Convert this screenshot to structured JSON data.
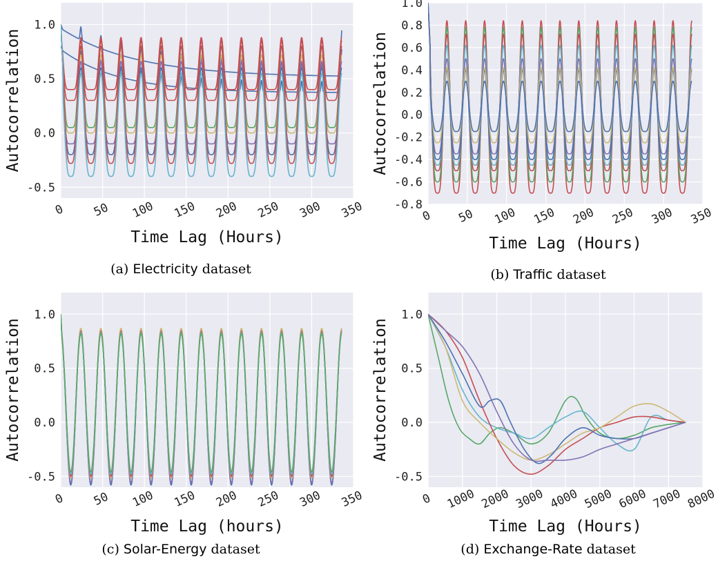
{
  "palette": [
    "#4c72b0",
    "#55a868",
    "#c44e52",
    "#8172b2",
    "#ccb974",
    "#64b5cd"
  ],
  "chart_data": [
    {
      "type": "line",
      "caption": {
        "prefix": "(a) ",
        "name": "Electricity",
        "suffix": " dataset"
      },
      "xlabel": "Time Lag (Hours)",
      "ylabel": "Autocorrelation",
      "xlim": [
        0,
        350
      ],
      "ylim": [
        -0.6,
        1.2
      ],
      "xticks": [
        "0",
        "50",
        "100",
        "150",
        "200",
        "250",
        "300",
        "350"
      ],
      "yticks": [
        "-0.5",
        "0.0",
        "0.5",
        "1.0"
      ],
      "grid": true,
      "legend": "none",
      "period_hours": 24,
      "x_max_data": 336,
      "series": [
        {
          "kind": "decay",
          "color": "#4c72b0",
          "start": 1.0,
          "floor": 0.55,
          "tau": 90,
          "amp": 0.06
        },
        {
          "kind": "decay",
          "color": "#4c72b0",
          "start": 0.8,
          "floor": 0.4,
          "tau": 70,
          "amp": 0.05
        },
        {
          "kind": "periodic",
          "color": "#c44e52",
          "peak": 0.88,
          "trough": 0.4,
          "sharp": 4
        },
        {
          "kind": "periodic",
          "color": "#c44e52",
          "peak": 0.85,
          "trough": 0.3,
          "sharp": 4
        },
        {
          "kind": "periodic",
          "color": "#55a868",
          "peak": 0.8,
          "trough": 0.05,
          "sharp": 3
        },
        {
          "kind": "periodic",
          "color": "#ccb974",
          "peak": 0.72,
          "trough": 0.0,
          "sharp": 3
        },
        {
          "kind": "periodic",
          "color": "#8172b2",
          "peak": 0.66,
          "trough": -0.1,
          "sharp": 3
        },
        {
          "kind": "periodic",
          "color": "#4c72b0",
          "peak": 0.6,
          "trough": -0.2,
          "sharp": 2
        },
        {
          "kind": "periodic",
          "color": "#c44e52",
          "peak": 0.8,
          "trough": -0.28,
          "sharp": 2
        },
        {
          "kind": "periodic",
          "color": "#64b5cd",
          "peak": 0.55,
          "trough": -0.4,
          "sharp": 2
        }
      ]
    },
    {
      "type": "line",
      "caption": {
        "prefix": "(b) ",
        "name": "Traffic",
        "suffix": " dataset"
      },
      "xlabel": "Time Lag (Hours)",
      "ylabel": "Autocorrelation",
      "xlim": [
        0,
        350
      ],
      "ylim": [
        -0.8,
        1.0
      ],
      "xticks": [
        "0",
        "50",
        "100",
        "150",
        "200",
        "250",
        "300",
        "350"
      ],
      "yticks": [
        "-0.8",
        "-0.6",
        "-0.4",
        "-0.2",
        "0.0",
        "0.2",
        "0.4",
        "0.6",
        "0.8",
        "1.0"
      ],
      "grid": true,
      "legend": "none",
      "period_hours": 24,
      "x_max_data": 336,
      "series": [
        {
          "kind": "periodic",
          "color": "#c44e52",
          "peak": 0.84,
          "trough": -0.7,
          "sharp": 2
        },
        {
          "kind": "periodic",
          "color": "#55a868",
          "peak": 0.78,
          "trough": -0.6,
          "sharp": 2
        },
        {
          "kind": "periodic",
          "color": "#c44e52",
          "peak": 0.72,
          "trough": -0.5,
          "sharp": 2
        },
        {
          "kind": "periodic",
          "color": "#64b5cd",
          "peak": 0.62,
          "trough": -0.45,
          "sharp": 2
        },
        {
          "kind": "periodic",
          "color": "#8172b2",
          "peak": 0.5,
          "trough": -0.35,
          "sharp": 2
        },
        {
          "kind": "periodic",
          "color": "#4c72b0",
          "peak": 0.4,
          "trough": -0.4,
          "sharp": 2
        },
        {
          "kind": "periodic",
          "color": "#ccb974",
          "peak": 0.42,
          "trough": -0.25,
          "sharp": 2
        },
        {
          "kind": "periodic",
          "color": "#4c72b0",
          "peak": 0.3,
          "trough": -0.15,
          "sharp": 2
        }
      ]
    },
    {
      "type": "line",
      "caption": {
        "prefix": "(c) ",
        "name": "Solar-Energy",
        "suffix": " dataset"
      },
      "xlabel": "Time Lag (hours)",
      "ylabel": "Autocorrelation",
      "xlim": [
        0,
        350
      ],
      "ylim": [
        -0.6,
        1.2
      ],
      "xticks": [
        "0",
        "50",
        "100",
        "150",
        "200",
        "250",
        "300",
        "350"
      ],
      "yticks": [
        "-0.5",
        "0.0",
        "0.5",
        "1.0"
      ],
      "grid": true,
      "legend": "none",
      "period_hours": 24,
      "x_max_data": 336,
      "series": [
        {
          "kind": "periodic",
          "color": "#4c72b0",
          "peak": 0.86,
          "trough": -0.58,
          "sharp": 1
        },
        {
          "kind": "periodic",
          "color": "#8172b2",
          "peak": 0.85,
          "trough": -0.56,
          "sharp": 1
        },
        {
          "kind": "periodic",
          "color": "#ccb974",
          "peak": 0.87,
          "trough": -0.52,
          "sharp": 1
        },
        {
          "kind": "periodic",
          "color": "#c44e52",
          "peak": 0.84,
          "trough": -0.5,
          "sharp": 1
        },
        {
          "kind": "periodic",
          "color": "#64b5cd",
          "peak": 0.83,
          "trough": -0.48,
          "sharp": 1
        },
        {
          "kind": "periodic",
          "color": "#55a868",
          "peak": 0.82,
          "trough": -0.46,
          "sharp": 1
        }
      ]
    },
    {
      "type": "line",
      "caption": {
        "prefix": "(d) ",
        "name": "Exchange-Rate",
        "suffix": " dataset"
      },
      "xlabel": "Time Lag (Hours)",
      "ylabel": "Autocorrelation",
      "xlim": [
        0,
        8000
      ],
      "ylim": [
        -0.6,
        1.2
      ],
      "xticks": [
        "0",
        "1000",
        "2000",
        "3000",
        "4000",
        "5000",
        "6000",
        "7000",
        "8000"
      ],
      "yticks": [
        "-0.5",
        "0.0",
        "0.5",
        "1.0"
      ],
      "grid": true,
      "legend": "none",
      "series": [
        {
          "kind": "points",
          "color": "#55a868",
          "x": [
            0,
            300,
            600,
            900,
            1200,
            1500,
            1800,
            2100,
            2500,
            3000,
            3500,
            4000,
            4300,
            4600,
            5000,
            5500,
            6000,
            6500,
            7000,
            7500
          ],
          "y": [
            1.0,
            0.6,
            0.2,
            -0.05,
            -0.15,
            -0.2,
            -0.1,
            -0.05,
            -0.1,
            -0.2,
            -0.1,
            0.2,
            0.22,
            0.05,
            -0.1,
            -0.15,
            -0.12,
            -0.05,
            -0.02,
            0.0
          ]
        },
        {
          "kind": "points",
          "color": "#64b5cd",
          "x": [
            0,
            500,
            1000,
            1500,
            2000,
            2500,
            3000,
            3500,
            4000,
            4500,
            5000,
            5500,
            6000,
            6500,
            7000,
            7500
          ],
          "y": [
            1.0,
            0.7,
            0.3,
            0.05,
            -0.05,
            -0.1,
            -0.15,
            -0.05,
            0.05,
            0.1,
            -0.05,
            -0.2,
            -0.25,
            0.05,
            0.02,
            0.0
          ]
        },
        {
          "kind": "points",
          "color": "#c44e52",
          "x": [
            0,
            500,
            1000,
            1500,
            2000,
            2500,
            3000,
            3500,
            4000,
            4500,
            5000,
            5500,
            6000,
            6500,
            7000,
            7500
          ],
          "y": [
            1.0,
            0.85,
            0.6,
            0.2,
            -0.15,
            -0.4,
            -0.48,
            -0.4,
            -0.25,
            -0.15,
            -0.05,
            0.0,
            0.05,
            0.05,
            0.02,
            0.0
          ]
        },
        {
          "kind": "points",
          "color": "#ccb974",
          "x": [
            0,
            500,
            1000,
            1500,
            2000,
            2500,
            3000,
            3500,
            4000,
            4500,
            5000,
            5500,
            6000,
            6500,
            7000,
            7500
          ],
          "y": [
            1.0,
            0.7,
            0.2,
            0.0,
            -0.15,
            -0.28,
            -0.35,
            -0.3,
            -0.2,
            -0.1,
            -0.05,
            0.05,
            0.15,
            0.17,
            0.1,
            0.0
          ]
        },
        {
          "kind": "points",
          "color": "#4c72b0",
          "x": [
            0,
            500,
            1000,
            1500,
            1800,
            2100,
            2400,
            2800,
            3200,
            3600,
            4000,
            4500,
            5000,
            5500,
            6000,
            6500,
            7000,
            7500
          ],
          "y": [
            1.0,
            0.75,
            0.45,
            0.15,
            0.2,
            0.2,
            0.0,
            -0.25,
            -0.38,
            -0.3,
            -0.15,
            -0.05,
            -0.12,
            -0.15,
            -0.15,
            -0.1,
            -0.05,
            0.0
          ]
        },
        {
          "kind": "points",
          "color": "#8172b2",
          "x": [
            0,
            500,
            1000,
            1500,
            2000,
            2500,
            3000,
            3500,
            4000,
            4500,
            5000,
            5500,
            6000,
            6500,
            7000,
            7500
          ],
          "y": [
            1.0,
            0.85,
            0.7,
            0.45,
            0.1,
            -0.2,
            -0.35,
            -0.35,
            -0.35,
            -0.32,
            -0.25,
            -0.2,
            -0.15,
            -0.1,
            -0.05,
            0.0
          ]
        }
      ]
    }
  ]
}
